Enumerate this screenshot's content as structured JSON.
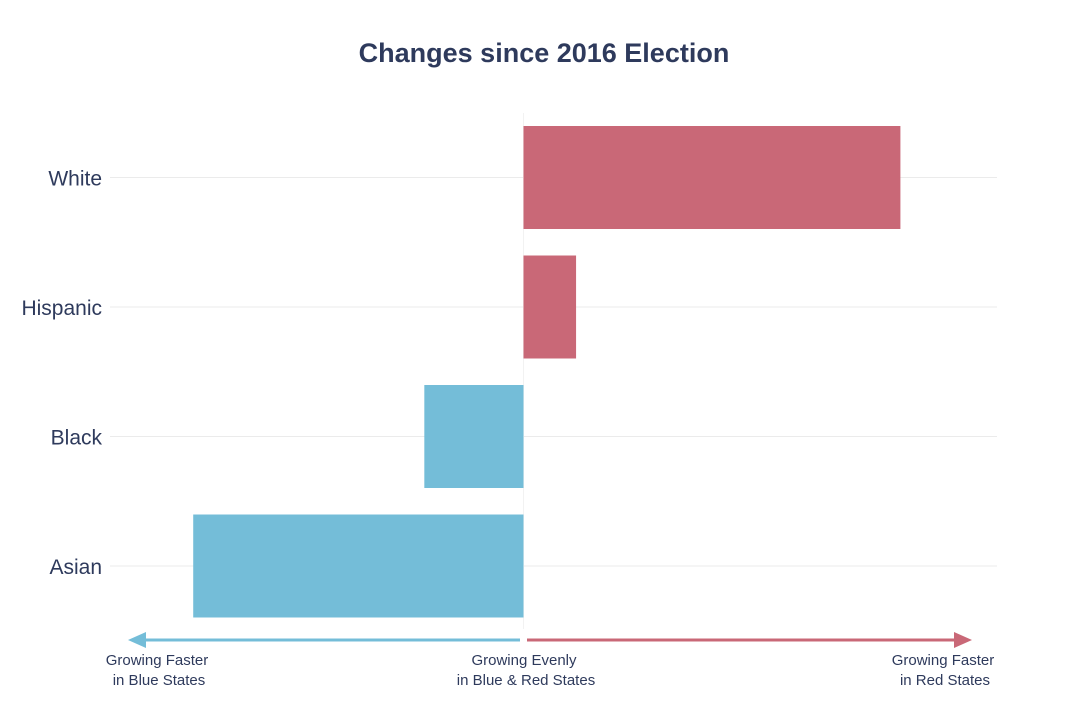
{
  "chart_data": {
    "type": "bar",
    "orientation": "horizontal",
    "title": "Changes since 2016 Election",
    "categories": [
      "White",
      "Hispanic",
      "Black",
      "Asian"
    ],
    "values": [
      3.8,
      0.53,
      -1.0,
      -3.33
    ],
    "xlim": [
      -3.5,
      4.3
    ],
    "grid": true,
    "xlabel": "",
    "ylabel": "",
    "axis_notes": {
      "left": {
        "line1": "Growing Faster",
        "line2": "in Blue States"
      },
      "center": {
        "line1": "Growing Evenly",
        "line2": "in Blue & Red States"
      },
      "right": {
        "line1": "Growing Faster",
        "line2": "in Red States"
      }
    }
  },
  "colors": {
    "positive": "#c96877",
    "negative": "#74bdd8",
    "text": "#2e3a5c",
    "gridline": "#ebebeb",
    "zero_line": "#f2f2f2"
  }
}
